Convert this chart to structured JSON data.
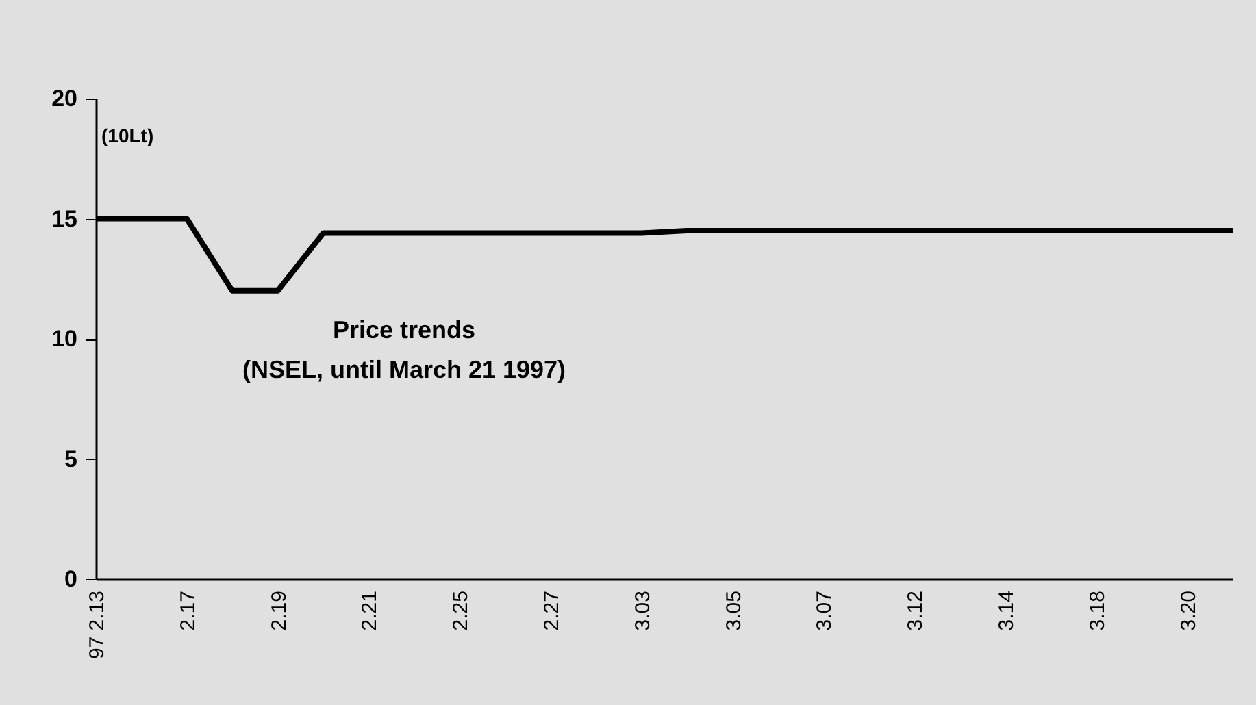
{
  "chart_data": {
    "type": "line",
    "title": "Price trends",
    "subtitle": "(NSEL, until March 21 1997)",
    "annotations": [
      "(10Lt)"
    ],
    "categories": [
      "97 2.13",
      null,
      "2.17",
      null,
      "2.19",
      null,
      "2.21",
      null,
      "2.25",
      null,
      "2.27",
      null,
      "3.03",
      null,
      "3.05",
      null,
      "3.07",
      null,
      "3.12",
      null,
      "3.14",
      null,
      "3.18",
      null,
      "3.20",
      null
    ],
    "series": [
      {
        "color": "#000000",
        "values": [
          15,
          15,
          15,
          12,
          12,
          14.4,
          14.4,
          14.4,
          14.4,
          14.4,
          14.4,
          14.4,
          14.4,
          14.5,
          14.5,
          14.5,
          14.5,
          14.5,
          14.5,
          14.5,
          14.5,
          14.5,
          14.5,
          14.5,
          14.5,
          14.5
        ]
      }
    ],
    "ylim": [
      0,
      20
    ],
    "yticks": [
      0,
      5,
      10,
      15,
      20
    ],
    "marker": "none",
    "line_style": "solid"
  }
}
